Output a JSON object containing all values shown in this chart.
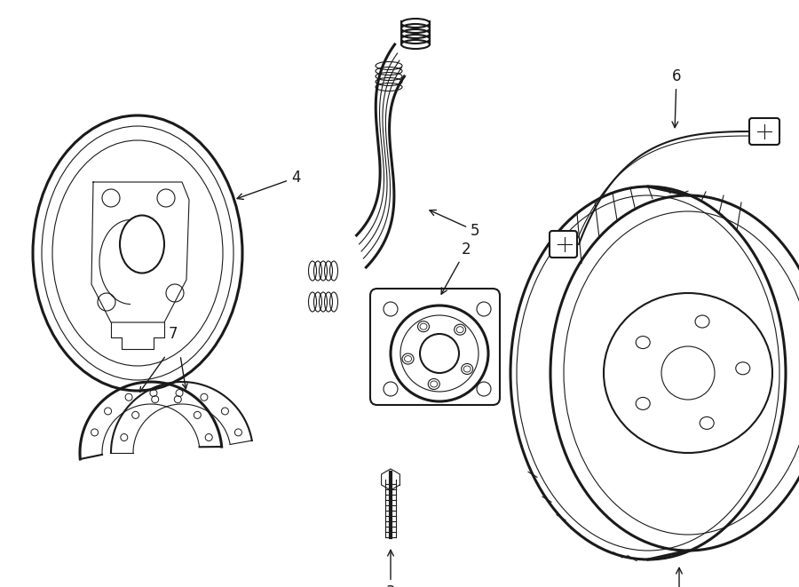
{
  "bg_color": "#ffffff",
  "line_color": "#1a1a1a",
  "fig_width": 9.0,
  "fig_height": 6.61,
  "lw_thin": 0.8,
  "lw_med": 1.5,
  "lw_thick": 2.2
}
